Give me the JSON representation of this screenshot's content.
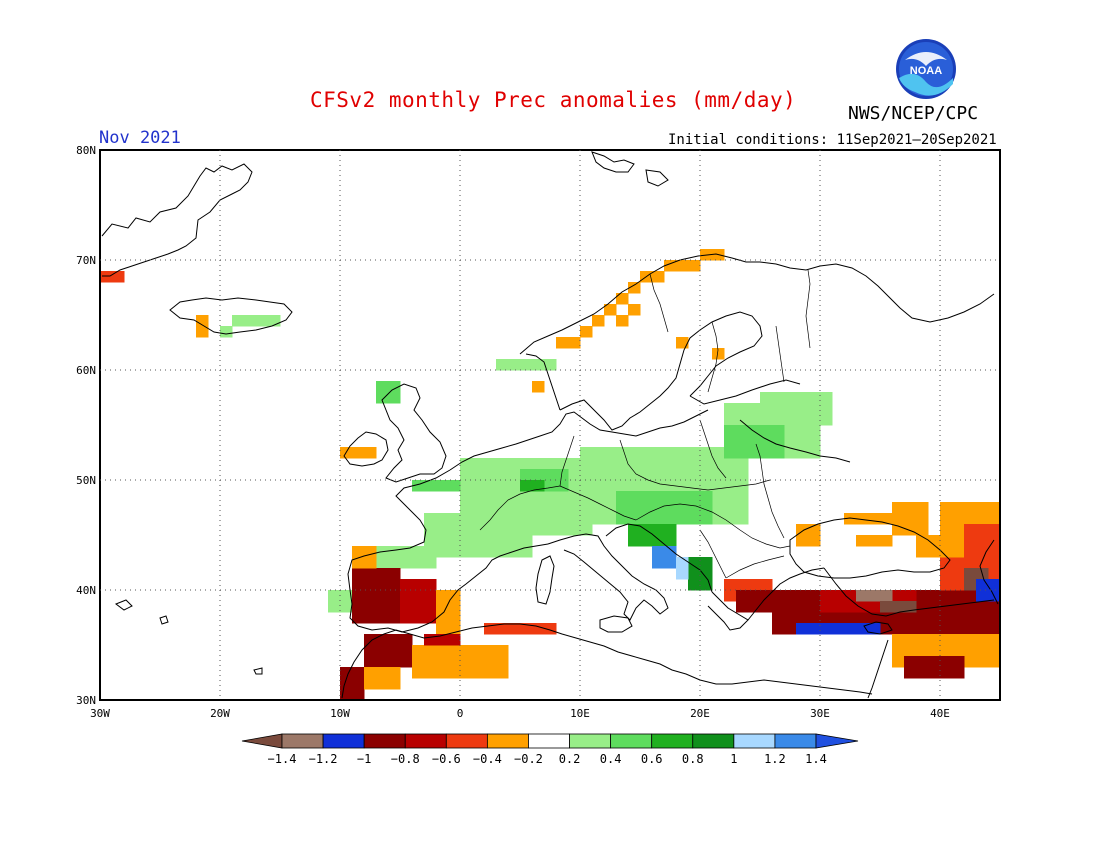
{
  "header": {
    "title": "CFSv2 monthly Prec anomalies (mm/day)",
    "agency": "NWS/NCEP/CPC",
    "period": "Nov 2021",
    "initial_conditions": "Initial conditions: 11Sep2021–20Sep2021",
    "logo_text": "NOAA"
  },
  "map": {
    "lon_range": [
      -30,
      45
    ],
    "lat_range": [
      30,
      80
    ],
    "lat_labels": [
      "30N",
      "40N",
      "50N",
      "60N",
      "70N",
      "80N"
    ],
    "lat_values": [
      30,
      40,
      50,
      60,
      70,
      80
    ],
    "lon_labels": [
      "30W",
      "20W",
      "10W",
      "0",
      "10E",
      "20E",
      "30E",
      "40E"
    ],
    "lon_values": [
      -30,
      -20,
      -10,
      0,
      10,
      20,
      30,
      40
    ],
    "gridlines": "dotted"
  },
  "colorbar": {
    "tick_labels": [
      "-1.4",
      "-1.2",
      "-1",
      "-0.8",
      "-0.6",
      "-0.4",
      "-0.2",
      "0.2",
      "0.4",
      "0.6",
      "0.8",
      "1",
      "1.2",
      "1.4"
    ],
    "colors": [
      "#7a4a3c",
      "#9c7868",
      "#1030d8",
      "#8b0000",
      "#b80000",
      "#ee3a10",
      "#ffa000",
      "#ffffff",
      "#98ee88",
      "#5edc5e",
      "#20b020",
      "#10901c",
      "#a8d8ff",
      "#3a8ae8",
      "#2050e0"
    ]
  },
  "colors": {
    "title": "#e00000",
    "period": "#2233cc"
  },
  "anomaly_regions": [
    {
      "color": "#98ee88",
      "cells": [
        [
          -11,
          38
        ],
        [
          -11,
          39
        ],
        [
          -10,
          38
        ],
        [
          -10,
          39
        ]
      ]
    },
    {
      "color": "#98ee88",
      "cells": [
        [
          -20,
          63
        ],
        [
          -19,
          64
        ],
        [
          -18,
          64
        ],
        [
          -17,
          64
        ],
        [
          -16,
          64
        ]
      ]
    },
    {
      "color": "#ffa000",
      "cells": [
        [
          -22,
          63
        ],
        [
          -22,
          64
        ]
      ]
    },
    {
      "color": "#ee3a10",
      "cells": [
        [
          -30,
          68
        ],
        [
          -29,
          68
        ]
      ]
    },
    {
      "color": "#ffa000",
      "cells": [
        [
          -10,
          52
        ],
        [
          -9,
          52
        ],
        [
          -8,
          52
        ]
      ]
    }
  ]
}
